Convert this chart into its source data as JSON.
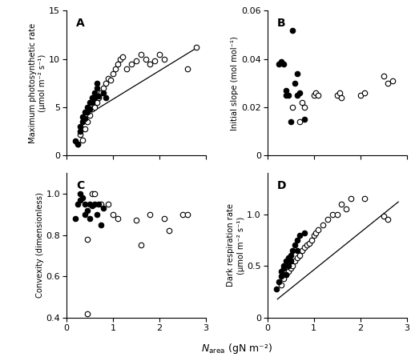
{
  "panel_A": {
    "label": "A",
    "open_x": [
      0.25,
      0.3,
      0.35,
      0.4,
      0.45,
      0.5,
      0.55,
      0.6,
      0.65,
      0.7,
      0.75,
      0.8,
      0.85,
      0.9,
      0.95,
      1.0,
      1.05,
      1.1,
      1.15,
      1.2,
      1.3,
      1.4,
      1.5,
      1.6,
      1.7,
      1.8,
      1.9,
      2.0,
      2.1,
      2.6,
      2.8
    ],
    "open_y": [
      1.2,
      2.2,
      1.6,
      2.8,
      3.5,
      4.2,
      4.8,
      5.0,
      5.5,
      6.0,
      6.5,
      7.0,
      7.5,
      8.0,
      7.8,
      8.5,
      9.0,
      9.5,
      10.0,
      10.2,
      9.0,
      9.5,
      9.8,
      10.5,
      10.0,
      9.5,
      9.8,
      10.5,
      10.0,
      9.0,
      11.2
    ],
    "filled_x": [
      0.2,
      0.25,
      0.3,
      0.3,
      0.35,
      0.35,
      0.4,
      0.4,
      0.45,
      0.45,
      0.5,
      0.5,
      0.55,
      0.55,
      0.6,
      0.6,
      0.65,
      0.65,
      0.7,
      0.8,
      0.85
    ],
    "filled_y": [
      1.5,
      1.2,
      2.5,
      3.0,
      3.5,
      4.0,
      4.5,
      3.8,
      5.0,
      4.5,
      5.5,
      4.8,
      6.0,
      5.5,
      6.5,
      6.0,
      7.5,
      7.0,
      6.2,
      6.5,
      6.0
    ],
    "trendline_x": [
      0.55,
      2.82
    ],
    "trendline_y": [
      4.5,
      11.2
    ],
    "ylabel": "Maximum photosynthetic rate\n(μmol m⁻² s⁻¹)",
    "ylim": [
      0,
      15
    ],
    "xlim": [
      0,
      3
    ],
    "yticks": [
      0,
      5,
      10,
      15
    ],
    "xticks": [
      0,
      1,
      2,
      3
    ]
  },
  "panel_B": {
    "label": "B",
    "open_x": [
      0.55,
      0.7,
      0.75,
      0.8,
      1.0,
      1.05,
      1.1,
      1.5,
      1.55,
      1.6,
      2.0,
      2.1,
      2.5,
      2.6,
      2.7
    ],
    "open_y": [
      0.02,
      0.014,
      0.022,
      0.02,
      0.025,
      0.026,
      0.025,
      0.025,
      0.026,
      0.024,
      0.025,
      0.026,
      0.033,
      0.03,
      0.031
    ],
    "filled_x": [
      0.25,
      0.3,
      0.35,
      0.4,
      0.4,
      0.45,
      0.5,
      0.55,
      0.6,
      0.65,
      0.65,
      0.7,
      0.8
    ],
    "filled_y": [
      0.038,
      0.039,
      0.038,
      0.025,
      0.027,
      0.025,
      0.014,
      0.052,
      0.03,
      0.034,
      0.025,
      0.026,
      0.015
    ],
    "ylabel": "Initial slope (mol mol⁻¹)",
    "ylim": [
      0,
      0.06
    ],
    "xlim": [
      0,
      3
    ],
    "yticks": [
      0,
      0.02,
      0.04,
      0.06
    ],
    "yticklabels": [
      "0",
      "0.02",
      "0.04",
      "0.06"
    ],
    "xticks": [
      0,
      1,
      2,
      3
    ]
  },
  "panel_C": {
    "label": "C",
    "open_x": [
      0.45,
      0.55,
      0.6,
      0.75,
      0.9,
      1.0,
      1.1,
      1.5,
      1.6,
      1.8,
      2.1,
      2.2,
      2.5,
      2.6
    ],
    "open_y": [
      0.78,
      1.0,
      1.0,
      0.95,
      0.95,
      0.9,
      0.88,
      0.87,
      0.75,
      0.9,
      0.88,
      0.82,
      0.9,
      0.9
    ],
    "filled_x": [
      0.2,
      0.25,
      0.3,
      0.3,
      0.35,
      0.4,
      0.4,
      0.45,
      0.5,
      0.5,
      0.55,
      0.6,
      0.65,
      0.7,
      0.75,
      0.8
    ],
    "filled_y": [
      0.88,
      0.95,
      1.0,
      0.97,
      0.98,
      0.9,
      0.95,
      0.92,
      0.95,
      0.88,
      0.94,
      0.95,
      0.9,
      0.95,
      0.85,
      0.93
    ],
    "outlier_x": [
      0.45
    ],
    "outlier_y": [
      0.42
    ],
    "ylabel": "Convexity (dimensionless)",
    "ylim": [
      0.4,
      1.1
    ],
    "xlim": [
      0,
      3
    ],
    "yticks": [
      0.4,
      0.6,
      0.8,
      1.0
    ],
    "xticks": [
      0,
      1,
      2,
      3
    ]
  },
  "panel_D": {
    "label": "D",
    "open_x": [
      0.3,
      0.35,
      0.4,
      0.45,
      0.5,
      0.55,
      0.6,
      0.65,
      0.7,
      0.75,
      0.8,
      0.85,
      0.9,
      0.95,
      1.0,
      1.05,
      1.1,
      1.2,
      1.3,
      1.4,
      1.5,
      1.6,
      1.7,
      1.8,
      2.1,
      2.5,
      2.6
    ],
    "open_y": [
      0.32,
      0.38,
      0.42,
      0.45,
      0.48,
      0.5,
      0.55,
      0.58,
      0.6,
      0.65,
      0.68,
      0.7,
      0.72,
      0.75,
      0.8,
      0.82,
      0.85,
      0.9,
      0.95,
      1.0,
      1.0,
      1.1,
      1.05,
      1.15,
      1.15,
      0.98,
      0.95
    ],
    "filled_x": [
      0.2,
      0.25,
      0.3,
      0.3,
      0.35,
      0.35,
      0.4,
      0.4,
      0.45,
      0.45,
      0.5,
      0.5,
      0.55,
      0.6,
      0.65,
      0.65,
      0.7,
      0.8
    ],
    "filled_y": [
      0.28,
      0.35,
      0.4,
      0.45,
      0.48,
      0.5,
      0.55,
      0.42,
      0.58,
      0.5,
      0.6,
      0.55,
      0.65,
      0.7,
      0.75,
      0.65,
      0.8,
      0.82
    ],
    "trendline_x": [
      0.22,
      2.82
    ],
    "trendline_y": [
      0.18,
      1.12
    ],
    "ylabel": "Dark respiration rate\n(μmol m⁻² s⁻¹)",
    "ylim": [
      0,
      1.4
    ],
    "xlim": [
      0,
      3
    ],
    "yticks": [
      0,
      0.5,
      1.0
    ],
    "yticklabels": [
      "0",
      "0.5",
      "1.0"
    ],
    "xticks": [
      0,
      1,
      2,
      3
    ]
  },
  "xlabel_text": "area",
  "xlabel_prefix": "$N_{",
  "xlabel_suffix": "}$ (gN m⁻²)",
  "marker_size": 22,
  "marker_lw": 0.8,
  "trend_lw": 0.9,
  "background_color": "#ffffff",
  "tick_fontsize": 8,
  "ylabel_fontsize": 7.2,
  "label_fontsize": 10
}
